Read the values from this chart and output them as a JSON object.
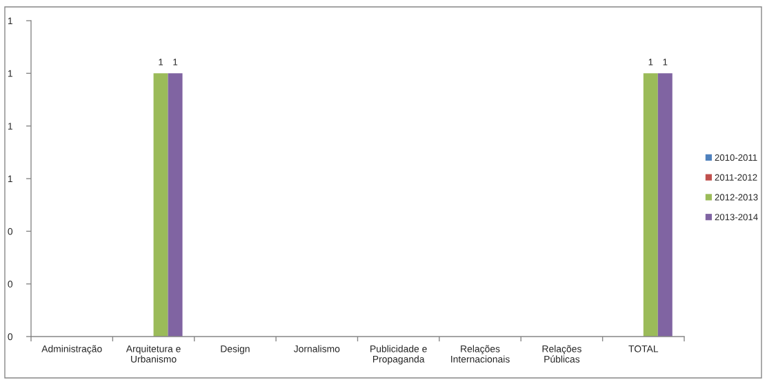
{
  "chart_data": {
    "type": "bar",
    "categories": [
      "Administração",
      "Arquitetura e\nUrbanismo",
      "Design",
      "Jornalismo",
      "Publicidade e\nPropaganda",
      "Relações\nInternacionais",
      "Relações\nPúblicas",
      "TOTAL"
    ],
    "series": [
      {
        "name": "2010-2011",
        "color": "#4f81bd",
        "values": [
          null,
          null,
          null,
          null,
          null,
          null,
          null,
          null
        ]
      },
      {
        "name": "2011-2012",
        "color": "#c0504d",
        "values": [
          null,
          null,
          null,
          null,
          null,
          null,
          null,
          null
        ]
      },
      {
        "name": "2012-2013",
        "color": "#9bbb59",
        "values": [
          null,
          1,
          null,
          null,
          null,
          null,
          null,
          1
        ]
      },
      {
        "name": "2013-2014",
        "color": "#8064a2",
        "values": [
          null,
          1,
          null,
          null,
          null,
          null,
          null,
          1
        ]
      }
    ],
    "ylim": [
      0,
      1.2
    ],
    "yticks": [
      0,
      {
        "value": 0.2,
        "label": "0"
      },
      {
        "value": 0.4,
        "label": "0"
      },
      {
        "value": 0.6,
        "label": "1"
      },
      {
        "value": 0.8,
        "label": "1"
      },
      1,
      {
        "value": 1.2,
        "label": "1"
      }
    ],
    "data_labels": true,
    "legend": "right"
  }
}
